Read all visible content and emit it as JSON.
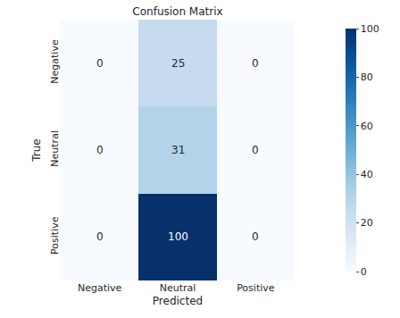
{
  "chart_data": {
    "type": "heatmap",
    "title": "Confusion Matrix",
    "x_label": "Predicted",
    "y_label": "True",
    "categories": [
      "Negative",
      "Neutral",
      "Positive"
    ],
    "y_categories": [
      "Negative",
      "Neutral",
      "Positive"
    ],
    "cells": [
      [
        0,
        25,
        0
      ],
      [
        0,
        31,
        0
      ],
      [
        0,
        100,
        0
      ]
    ],
    "colorbar_lim": [
      0,
      100
    ],
    "colorbar_ticks": [
      0,
      20,
      40,
      60,
      80,
      100
    ],
    "color": "Blues",
    "data_labels": true
  }
}
